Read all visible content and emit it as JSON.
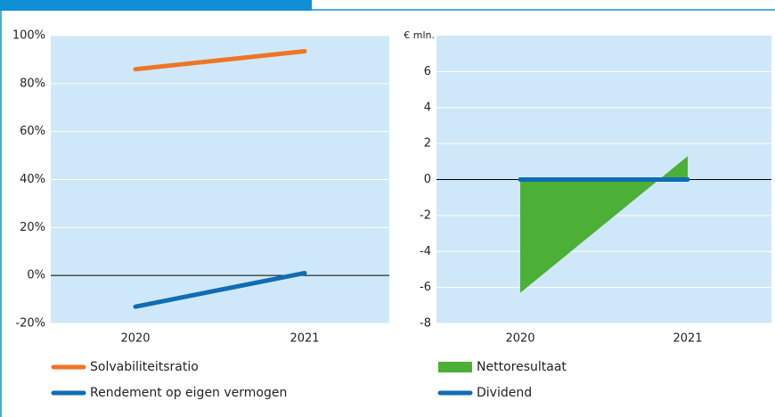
{
  "chart_data": [
    {
      "type": "line",
      "categories": [
        "2020",
        "2021"
      ],
      "series": [
        {
          "name": "Solvabiliteitsratio",
          "color": "#ee7523",
          "values": [
            86,
            93.5
          ]
        },
        {
          "name": "Rendement op eigen vermogen",
          "color": "#0f6db3",
          "values": [
            -13,
            1
          ]
        }
      ],
      "ylim": [
        -20,
        100
      ],
      "yticks": [
        {
          "value": -20,
          "label": "-20%"
        },
        {
          "value": 0,
          "label": "0%"
        },
        {
          "value": 20,
          "label": "20%"
        },
        {
          "value": 40,
          "label": "40%"
        },
        {
          "value": 60,
          "label": "60%"
        },
        {
          "value": 80,
          "label": "80%"
        },
        {
          "value": 100,
          "label": "100%"
        }
      ],
      "grid": true
    },
    {
      "type": "area",
      "y_label": "€ mln.",
      "categories": [
        "2020",
        "2021"
      ],
      "series": [
        {
          "name": "Nettoresultaat",
          "type": "area",
          "color": "#4caf36",
          "values": [
            -6.3,
            1.3
          ]
        },
        {
          "name": "Dividend",
          "type": "line",
          "color": "#0f6db3",
          "values": [
            0,
            0
          ]
        }
      ],
      "ylim": [
        -8,
        8
      ],
      "yticks": [
        -8,
        -6,
        -4,
        -2,
        0,
        2,
        4,
        6
      ],
      "grid": true
    }
  ]
}
